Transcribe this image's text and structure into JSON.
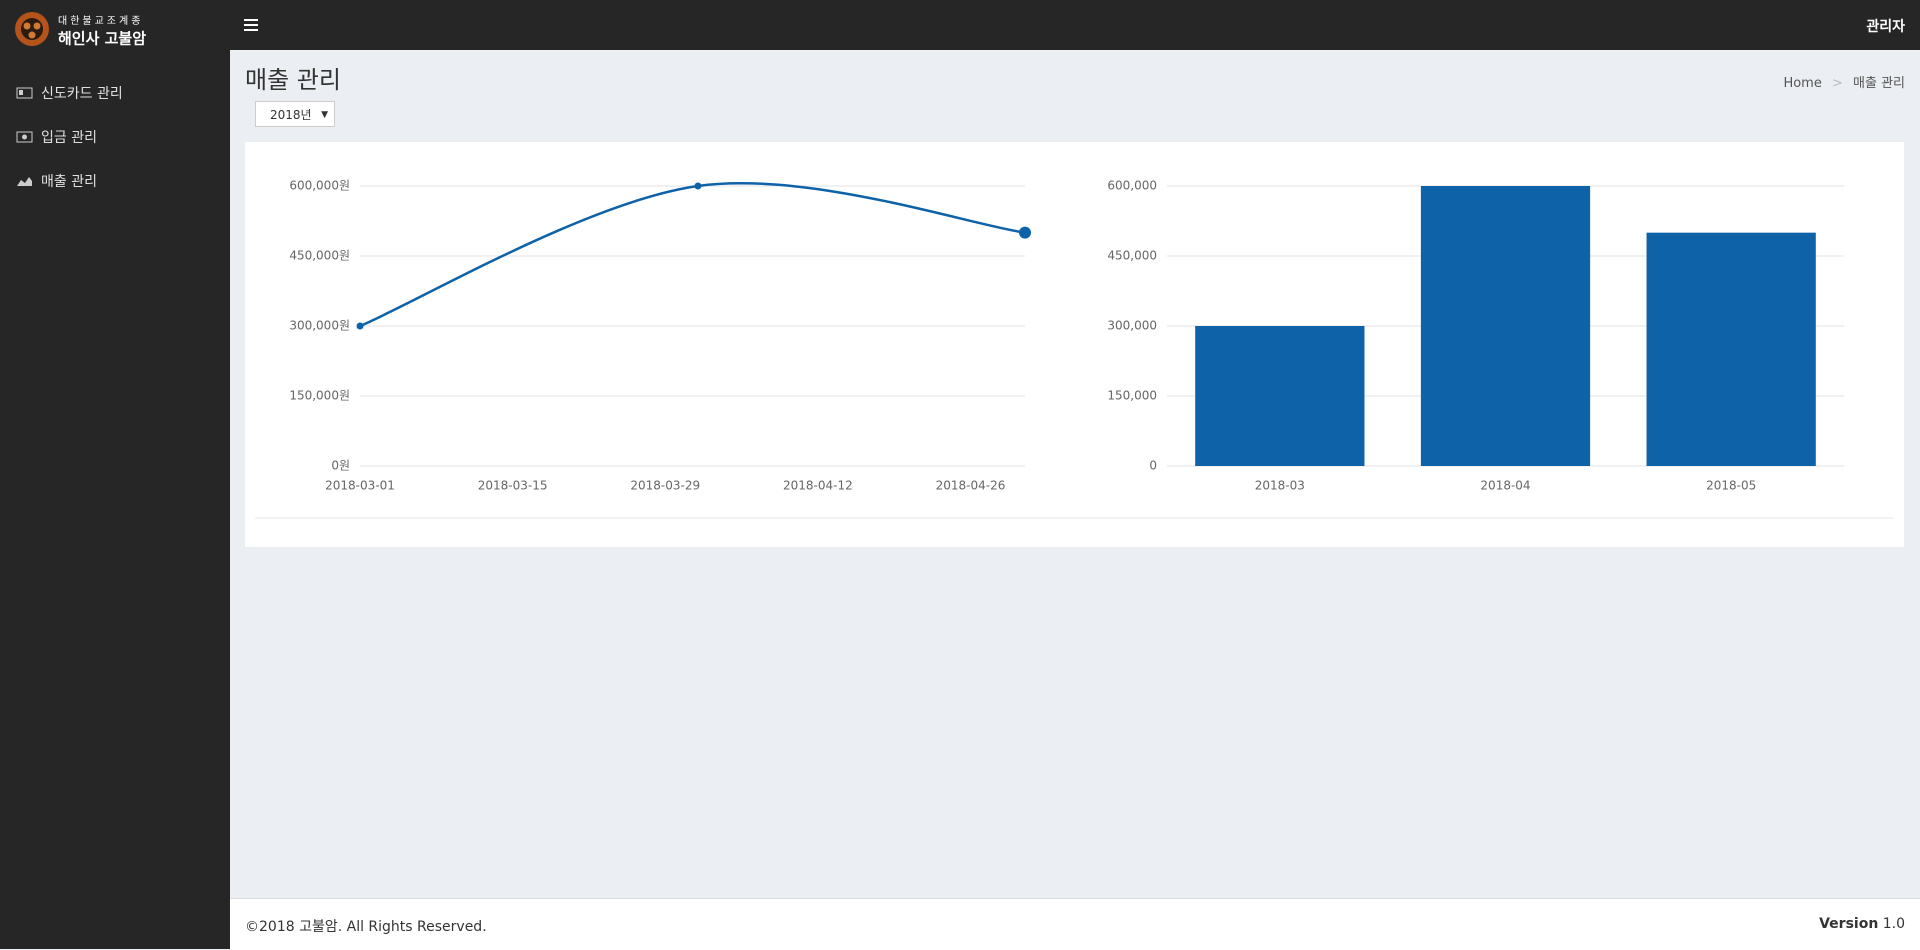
{
  "sidebar": {
    "logo_top": "대한불교조계종",
    "logo_bottom": "해인사 고불암",
    "menu": [
      "신도카드 관리",
      "입금 관리",
      "매출 관리"
    ]
  },
  "header": {
    "user": "관리자"
  },
  "content": {
    "title": "매출 관리",
    "breadcrumb": [
      "Home",
      "매출 관리"
    ],
    "year_select": "2018년"
  },
  "footer": {
    "copyright": "©2018 고불암. All Rights Reserved.",
    "version_label": "Version",
    "version": "1.0"
  },
  "chart_data": [
    {
      "type": "line",
      "x": [
        "2018-03-01",
        "2018-04-01",
        "2018-05-01"
      ],
      "series": [
        {
          "color": "#0d62a8",
          "values": [
            300000,
            600000,
            500000
          ]
        }
      ],
      "xlim": [
        "2018-03-01",
        "2018-05-01"
      ],
      "xticks": [
        "2018-03-01",
        "2018-03-15",
        "2018-03-29",
        "2018-04-12",
        "2018-04-26"
      ],
      "ylim": [
        0,
        600000
      ],
      "yticks": [
        {
          "value": 0,
          "label": "0원"
        },
        {
          "value": 150000,
          "label": "150,000원"
        },
        {
          "value": 300000,
          "label": "300,000원"
        },
        {
          "value": 450000,
          "label": "450,000원"
        },
        {
          "value": 600000,
          "label": "600,000원"
        }
      ],
      "grid": true
    },
    {
      "type": "bar",
      "categories": [
        "2018-03",
        "2018-04",
        "2018-05"
      ],
      "series": [
        {
          "color": "#0d62a8",
          "values": [
            300000,
            600000,
            500000
          ]
        }
      ],
      "ylim": [
        0,
        600000
      ],
      "yticks": [
        0,
        {
          "value": 150000,
          "label": "150,000"
        },
        {
          "value": 300000,
          "label": "300,000"
        },
        {
          "value": 450000,
          "label": "450,000"
        },
        {
          "value": 600000,
          "label": "600,000"
        }
      ],
      "grid": true
    }
  ]
}
